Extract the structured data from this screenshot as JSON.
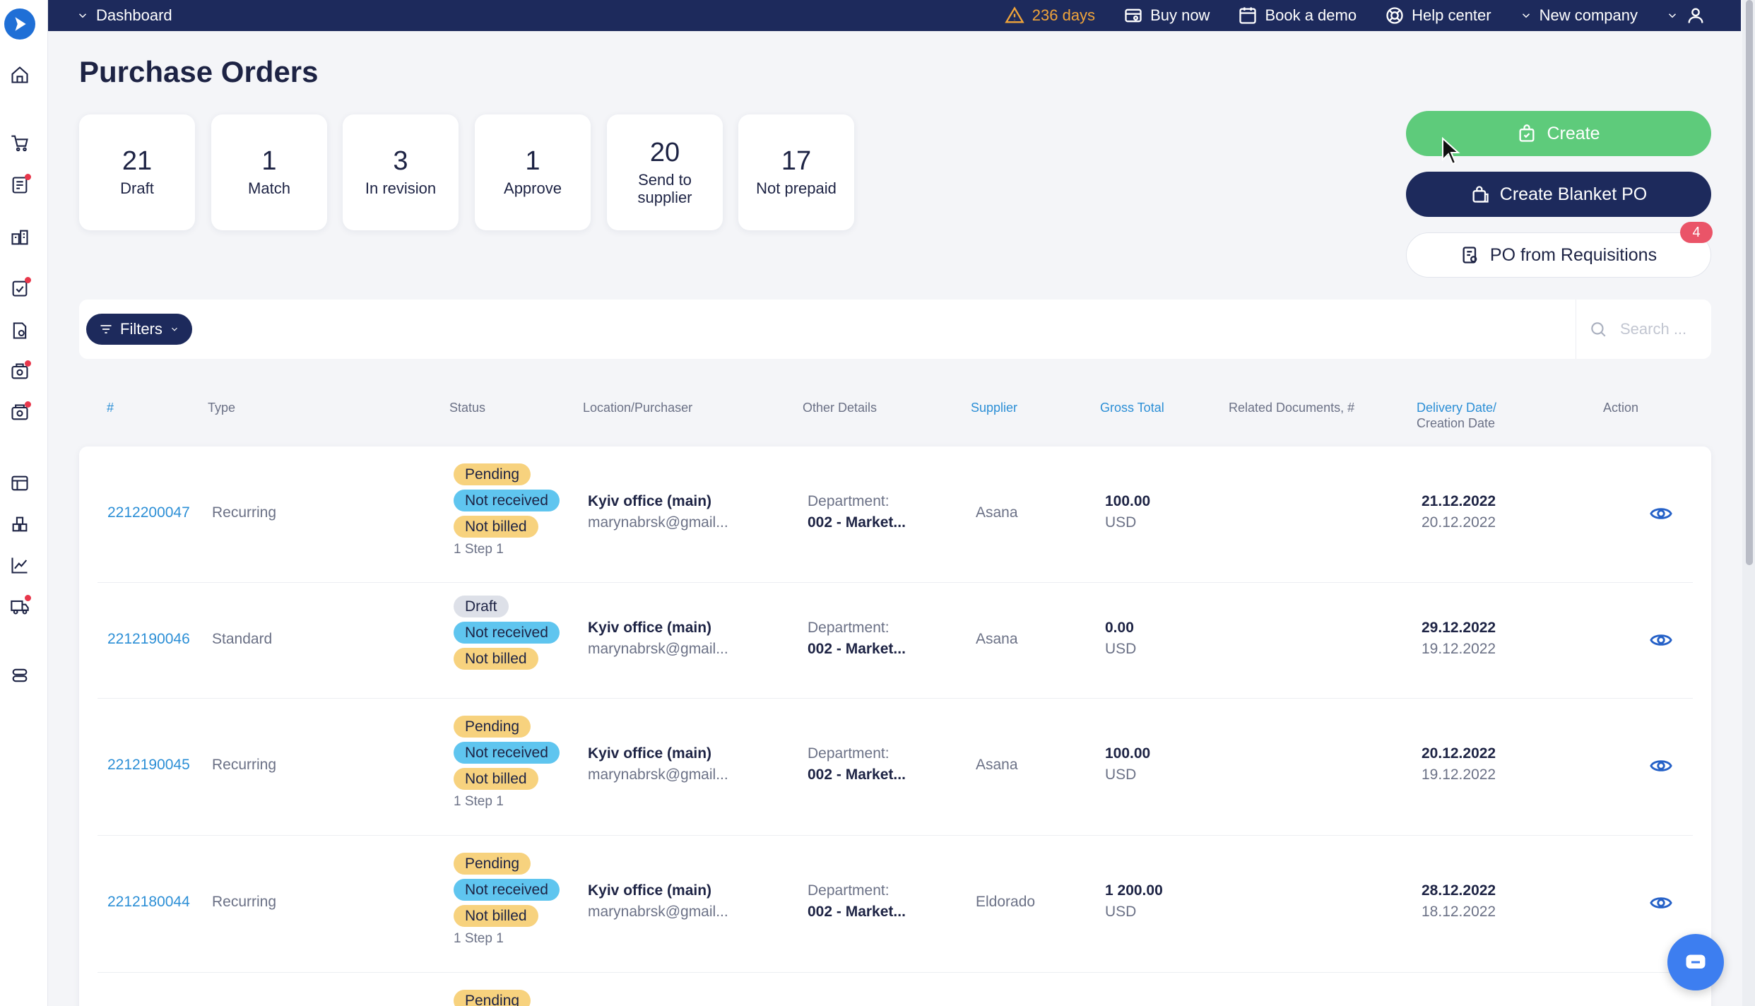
{
  "topbar": {
    "dashboard_label": "Dashboard",
    "warning_label": "236 days",
    "buy_now": "Buy now",
    "book_demo": "Book a demo",
    "help_center": "Help center",
    "company": "New company"
  },
  "page": {
    "title": "Purchase Orders"
  },
  "stats": [
    {
      "num": "21",
      "label": "Draft"
    },
    {
      "num": "1",
      "label": "Match"
    },
    {
      "num": "3",
      "label": "In revision"
    },
    {
      "num": "1",
      "label": "Approve"
    },
    {
      "num": "20",
      "label": "Send to supplier"
    },
    {
      "num": "17",
      "label": "Not prepaid"
    }
  ],
  "actions": {
    "create": "Create",
    "blanket": "Create Blanket PO",
    "requisitions": "PO from Requisitions",
    "requisitions_badge": "4"
  },
  "filters": {
    "label": "Filters",
    "search_placeholder": "Search ..."
  },
  "columns": {
    "num": "#",
    "type": "Type",
    "status": "Status",
    "location": "Location/Purchaser",
    "other": "Other Details",
    "supplier": "Supplier",
    "gross": "Gross Total",
    "related": "Related Documents, #",
    "delivery": "Delivery Date/",
    "creation": "Creation Date",
    "action": "Action"
  },
  "rows": [
    {
      "num": "2212200047",
      "type": "Recurring",
      "statuses": [
        "Pending",
        "Not received",
        "Not billed"
      ],
      "step": "1 Step 1",
      "location": "Kyiv office (main)",
      "purchaser": "marynabrsk@gmail...",
      "dept_label": "Department:",
      "dept": "002 - Market...",
      "supplier": "Asana",
      "amount": "100.00",
      "currency": "USD",
      "delivery": "21.12.2022",
      "created": "20.12.2022"
    },
    {
      "num": "2212190046",
      "type": "Standard",
      "statuses": [
        "Draft",
        "Not received",
        "Not billed"
      ],
      "step": "",
      "location": "Kyiv office (main)",
      "purchaser": "marynabrsk@gmail...",
      "dept_label": "Department:",
      "dept": "002 - Market...",
      "supplier": "Asana",
      "amount": "0.00",
      "currency": "USD",
      "delivery": "29.12.2022",
      "created": "19.12.2022"
    },
    {
      "num": "2212190045",
      "type": "Recurring",
      "statuses": [
        "Pending",
        "Not received",
        "Not billed"
      ],
      "step": "1 Step 1",
      "location": "Kyiv office (main)",
      "purchaser": "marynabrsk@gmail...",
      "dept_label": "Department:",
      "dept": "002 - Market...",
      "supplier": "Asana",
      "amount": "100.00",
      "currency": "USD",
      "delivery": "20.12.2022",
      "created": "19.12.2022"
    },
    {
      "num": "2212180044",
      "type": "Recurring",
      "statuses": [
        "Pending",
        "Not received",
        "Not billed"
      ],
      "step": "1 Step 1",
      "location": "Kyiv office (main)",
      "purchaser": "marynabrsk@gmail...",
      "dept_label": "Department:",
      "dept": "002 - Market...",
      "supplier": "Eldorado",
      "amount": "1 200.00",
      "currency": "USD",
      "delivery": "28.12.2022",
      "created": "18.12.2022"
    },
    {
      "num": "",
      "type": "",
      "statuses": [
        "Pending"
      ],
      "step": "",
      "location": "",
      "purchaser": "",
      "dept_label": "",
      "dept": "",
      "supplier": "",
      "amount": "",
      "currency": "",
      "delivery": "",
      "created": ""
    }
  ],
  "icons": {
    "sidebar": [
      "home-icon",
      "cart-icon",
      "requisition-icon",
      "suppliers-icon",
      "approvals-icon",
      "invoices-icon",
      "receipts-icon",
      "payments-icon",
      "budgets-icon",
      "inventory-icon",
      "analytics-icon",
      "delivery-icon",
      "settings-icon"
    ]
  },
  "colors": {
    "navy": "#1d2a5c",
    "green": "#5ecb7b",
    "link": "#2c8fd6",
    "warning": "#f0a43a",
    "pill_yellow": "#f7d27e",
    "pill_blue": "#5fc5ef"
  }
}
